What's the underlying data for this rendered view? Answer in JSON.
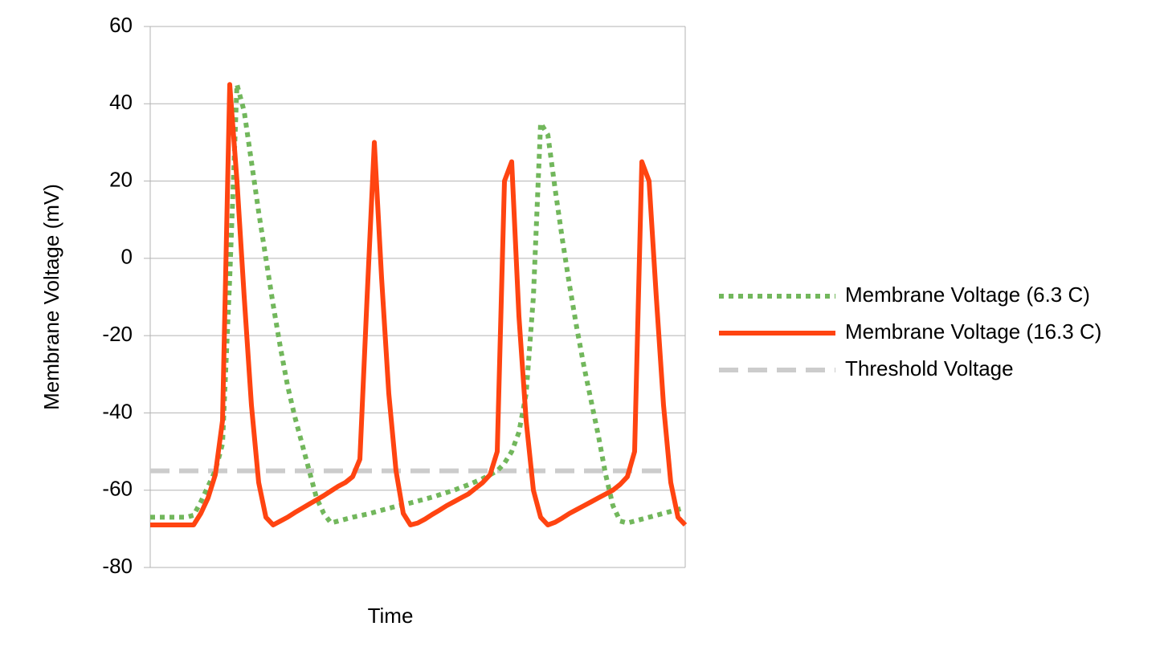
{
  "chart_data": {
    "type": "line",
    "ylabel": "Membrane Voltage (mV)",
    "xlabel": "Time",
    "ylim": [
      -80,
      60
    ],
    "yticks": [
      -80,
      -60,
      -40,
      -20,
      0,
      20,
      40,
      60
    ],
    "grid": true,
    "legend": "right",
    "categories": [
      null,
      null,
      null,
      null,
      null,
      null,
      null,
      null,
      null,
      null,
      null,
      null,
      null,
      null,
      null,
      null,
      null,
      null,
      null,
      null,
      null,
      null,
      null,
      null,
      null,
      null,
      null,
      null,
      null,
      null,
      null,
      null,
      null,
      null,
      null,
      null,
      null,
      null,
      null,
      null,
      null,
      null,
      null,
      null,
      null,
      null,
      null,
      null,
      null,
      null,
      null,
      null,
      null,
      null,
      null,
      null,
      null,
      null,
      null,
      null,
      null,
      null,
      null,
      null,
      null,
      null,
      null,
      null,
      null,
      null,
      null,
      null,
      null,
      null,
      null
    ],
    "series": [
      {
        "name": "Membrane Voltage (6.3 C)",
        "color": "#72b75c",
        "dash": "dotted",
        "values": [
          -67,
          -67,
          -67,
          -67,
          -67,
          -67,
          -66.5,
          -63,
          -59,
          -55,
          -48,
          -5,
          45,
          38,
          25,
          12,
          0,
          -12,
          -23,
          -33,
          -41,
          -48,
          -55,
          -62,
          -66,
          -68.5,
          -68,
          -67.5,
          -67,
          -66.6,
          -66.2,
          -65.7,
          -65.2,
          -64.7,
          -64.2,
          -63.8,
          -63.3,
          -62.8,
          -62.3,
          -61.8,
          -61.2,
          -60.6,
          -60,
          -59.3,
          -58.6,
          -57.8,
          -57,
          -56,
          -55,
          -53,
          -50,
          -45,
          -35,
          -10,
          35,
          32,
          18,
          5,
          -7,
          -18,
          -28,
          -37,
          -46,
          -56,
          -64,
          -68,
          -68.5,
          -68,
          -67.5,
          -67,
          -66.5,
          -66,
          -65.5,
          -65,
          -64.5
        ]
      },
      {
        "name": "Membrane Voltage (16.3 C)",
        "color": "#ff4411",
        "dash": "solid",
        "values": [
          -69,
          -69,
          -69,
          -69,
          -69,
          -69,
          -69,
          -66,
          -62,
          -56,
          -42,
          45,
          20,
          -10,
          -38,
          -58,
          -67,
          -69,
          -68,
          -67,
          -65.8,
          -64.7,
          -63.6,
          -62.5,
          -61.4,
          -60.2,
          -59,
          -58,
          -56.5,
          -52,
          -10,
          30,
          -5,
          -35,
          -55,
          -66,
          -69,
          -68.5,
          -67.5,
          -66.3,
          -65.2,
          -64,
          -63,
          -62,
          -61,
          -59.5,
          -58,
          -56,
          -50,
          20,
          25,
          -15,
          -42,
          -60,
          -67,
          -69,
          -68.3,
          -67.2,
          -66,
          -65,
          -64,
          -63,
          -62,
          -61,
          -60,
          -58.5,
          -56.5,
          -50,
          25,
          20,
          -10,
          -38,
          -58,
          -67,
          -69
        ]
      },
      {
        "name": "Threshold Voltage",
        "color": "#cccccc",
        "dash": "dashed",
        "values": [
          -55,
          -55,
          -55,
          -55,
          -55,
          -55,
          -55,
          -55,
          -55,
          -55,
          -55,
          -55,
          -55,
          -55,
          -55,
          -55,
          -55,
          -55,
          -55,
          -55,
          -55,
          -55,
          -55,
          -55,
          -55,
          -55,
          -55,
          -55,
          -55,
          -55,
          -55,
          -55,
          -55,
          -55,
          -55,
          -55,
          -55,
          -55,
          -55,
          -55,
          -55,
          -55,
          -55,
          -55,
          -55,
          -55,
          -55,
          -55,
          -55,
          -55,
          -55,
          -55,
          -55,
          -55,
          -55,
          -55,
          -55,
          -55,
          -55,
          -55,
          -55,
          -55,
          -55,
          -55,
          -55,
          -55,
          -55,
          -55,
          -55,
          -55,
          -55,
          -55,
          -55,
          null,
          null
        ]
      }
    ]
  }
}
